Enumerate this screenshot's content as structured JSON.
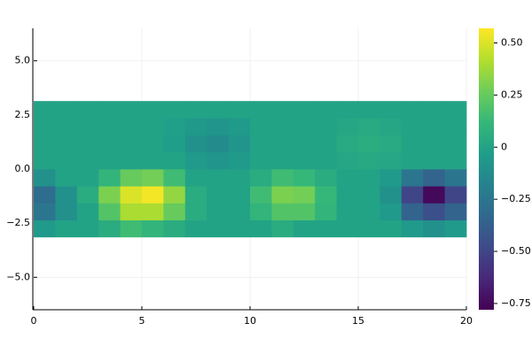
{
  "chart_data": {
    "type": "heatmap",
    "x": [
      0,
      1,
      2,
      3,
      4,
      5,
      6,
      7,
      8,
      9,
      10,
      11,
      12,
      13,
      14,
      15,
      16,
      17,
      18,
      19,
      20
    ],
    "y": [
      -3.14,
      -2.355,
      -1.57,
      -0.785,
      0,
      0.785,
      1.57,
      2.355,
      3.14
    ],
    "z": [
      [
        -0.05,
        0,
        0,
        0.05,
        0.15,
        0.1,
        0.05,
        0,
        0,
        0,
        0,
        0.05,
        0,
        0,
        0,
        0,
        0,
        -0.05,
        -0.1,
        -0.05
      ],
      [
        -0.25,
        -0.1,
        0,
        0.2,
        0.4,
        0.4,
        0.25,
        0.05,
        0,
        0,
        0.1,
        0.2,
        0.2,
        0.1,
        0,
        0,
        -0.05,
        -0.35,
        -0.45,
        -0.35
      ],
      [
        -0.3,
        -0.1,
        0.05,
        0.3,
        0.5,
        0.55,
        0.35,
        0.05,
        0,
        0,
        0.15,
        0.3,
        0.28,
        0.12,
        0,
        0,
        -0.1,
        -0.5,
        -0.75,
        -0.5
      ],
      [
        -0.1,
        0,
        0,
        0.1,
        0.25,
        0.28,
        0.15,
        0,
        0,
        0,
        0.05,
        0.15,
        0.12,
        0.05,
        0,
        0,
        -0.05,
        -0.25,
        -0.35,
        -0.25
      ],
      [
        0,
        0,
        0,
        0,
        0,
        0,
        0,
        -0.05,
        -0.08,
        -0.05,
        0,
        0,
        0,
        0,
        0.02,
        0.03,
        0.02,
        0,
        0,
        0
      ],
      [
        0,
        0,
        0,
        0,
        0,
        0,
        -0.03,
        -0.1,
        -0.13,
        -0.08,
        0,
        0,
        0,
        0,
        0.04,
        0.06,
        0.04,
        0,
        0,
        0
      ],
      [
        0,
        0,
        0,
        0,
        0,
        0,
        -0.02,
        -0.06,
        -0.08,
        -0.05,
        0,
        0,
        0,
        0,
        0.02,
        0.04,
        0.02,
        0,
        0,
        0
      ],
      [
        0,
        0,
        0,
        0,
        0,
        0,
        0,
        0,
        0,
        0,
        0,
        0,
        0,
        0,
        0,
        0,
        0,
        0,
        0,
        0
      ]
    ],
    "xlim": [
      0,
      20
    ],
    "ylim": [
      -6.5,
      6.5
    ],
    "xticks": [
      0,
      5,
      10,
      15,
      20
    ],
    "yticks": [
      {
        "value": -5,
        "label": "−5.0"
      },
      {
        "value": -2.5,
        "label": "−2.5"
      },
      {
        "value": 0,
        "label": "0.0"
      },
      {
        "value": 2.5,
        "label": "2.5"
      },
      {
        "value": 5,
        "label": "5.0"
      }
    ],
    "clim": [
      -0.78,
      0.57
    ],
    "cticks": [
      {
        "value": -0.75,
        "label": "−0.75"
      },
      {
        "value": -0.5,
        "label": "−0.50"
      },
      {
        "value": -0.25,
        "label": "−0.25"
      },
      0,
      {
        "value": 0.25,
        "label": "0.25"
      },
      {
        "value": 0.5,
        "label": "0.50"
      }
    ],
    "colormap": "viridis",
    "grid": true
  }
}
